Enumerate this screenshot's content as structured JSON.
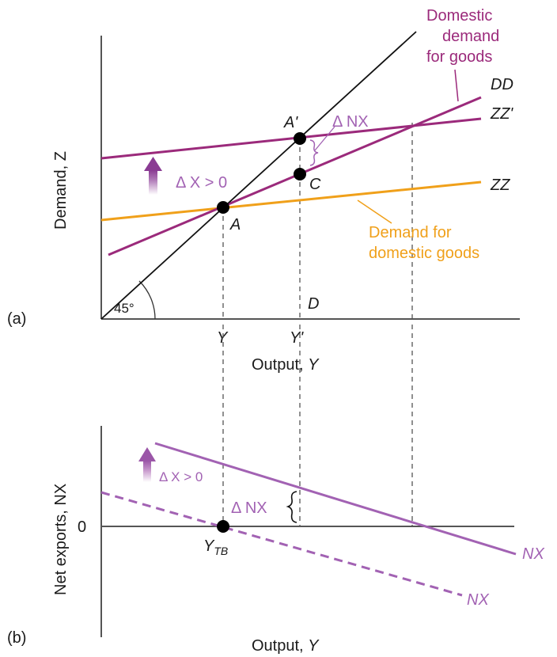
{
  "panel_a": {
    "tag": "(a)",
    "ylabel": "Demand, Z",
    "xlabel_prefix": "Output, ",
    "xlabel_var": "Y",
    "angle_label": "45°",
    "lines": {
      "dd": "DD",
      "zz_new": "ZZ'",
      "zz": "ZZ"
    },
    "points": {
      "a": "A",
      "a_prime": "A'",
      "c": "C",
      "d": "D"
    },
    "ticks": {
      "y": "Y",
      "y_prime": "Y'"
    },
    "annotations": {
      "delta_nx": "Δ NX",
      "shift": "Δ X > 0",
      "domestic_demand": [
        "Domestic",
        "demand",
        "for goods"
      ],
      "demand_domestic_goods": [
        "Demand for",
        "domestic goods"
      ]
    }
  },
  "panel_b": {
    "tag": "(b)",
    "ylabel": "Net exports, NX",
    "xlabel_prefix": "Output, ",
    "xlabel_var": "Y",
    "zero": "0",
    "ytb_main": "Y",
    "ytb_sub": "TB",
    "shift": "Δ X > 0",
    "delta_nx": "Δ NX",
    "nx_new": "NX",
    "nx_old": "NX"
  },
  "colors": {
    "domestic_demand": "#9b2a7b",
    "demand_domestic_goods": "#f0a01a",
    "net_exports": "#a262b3",
    "axis": "#555555"
  }
}
